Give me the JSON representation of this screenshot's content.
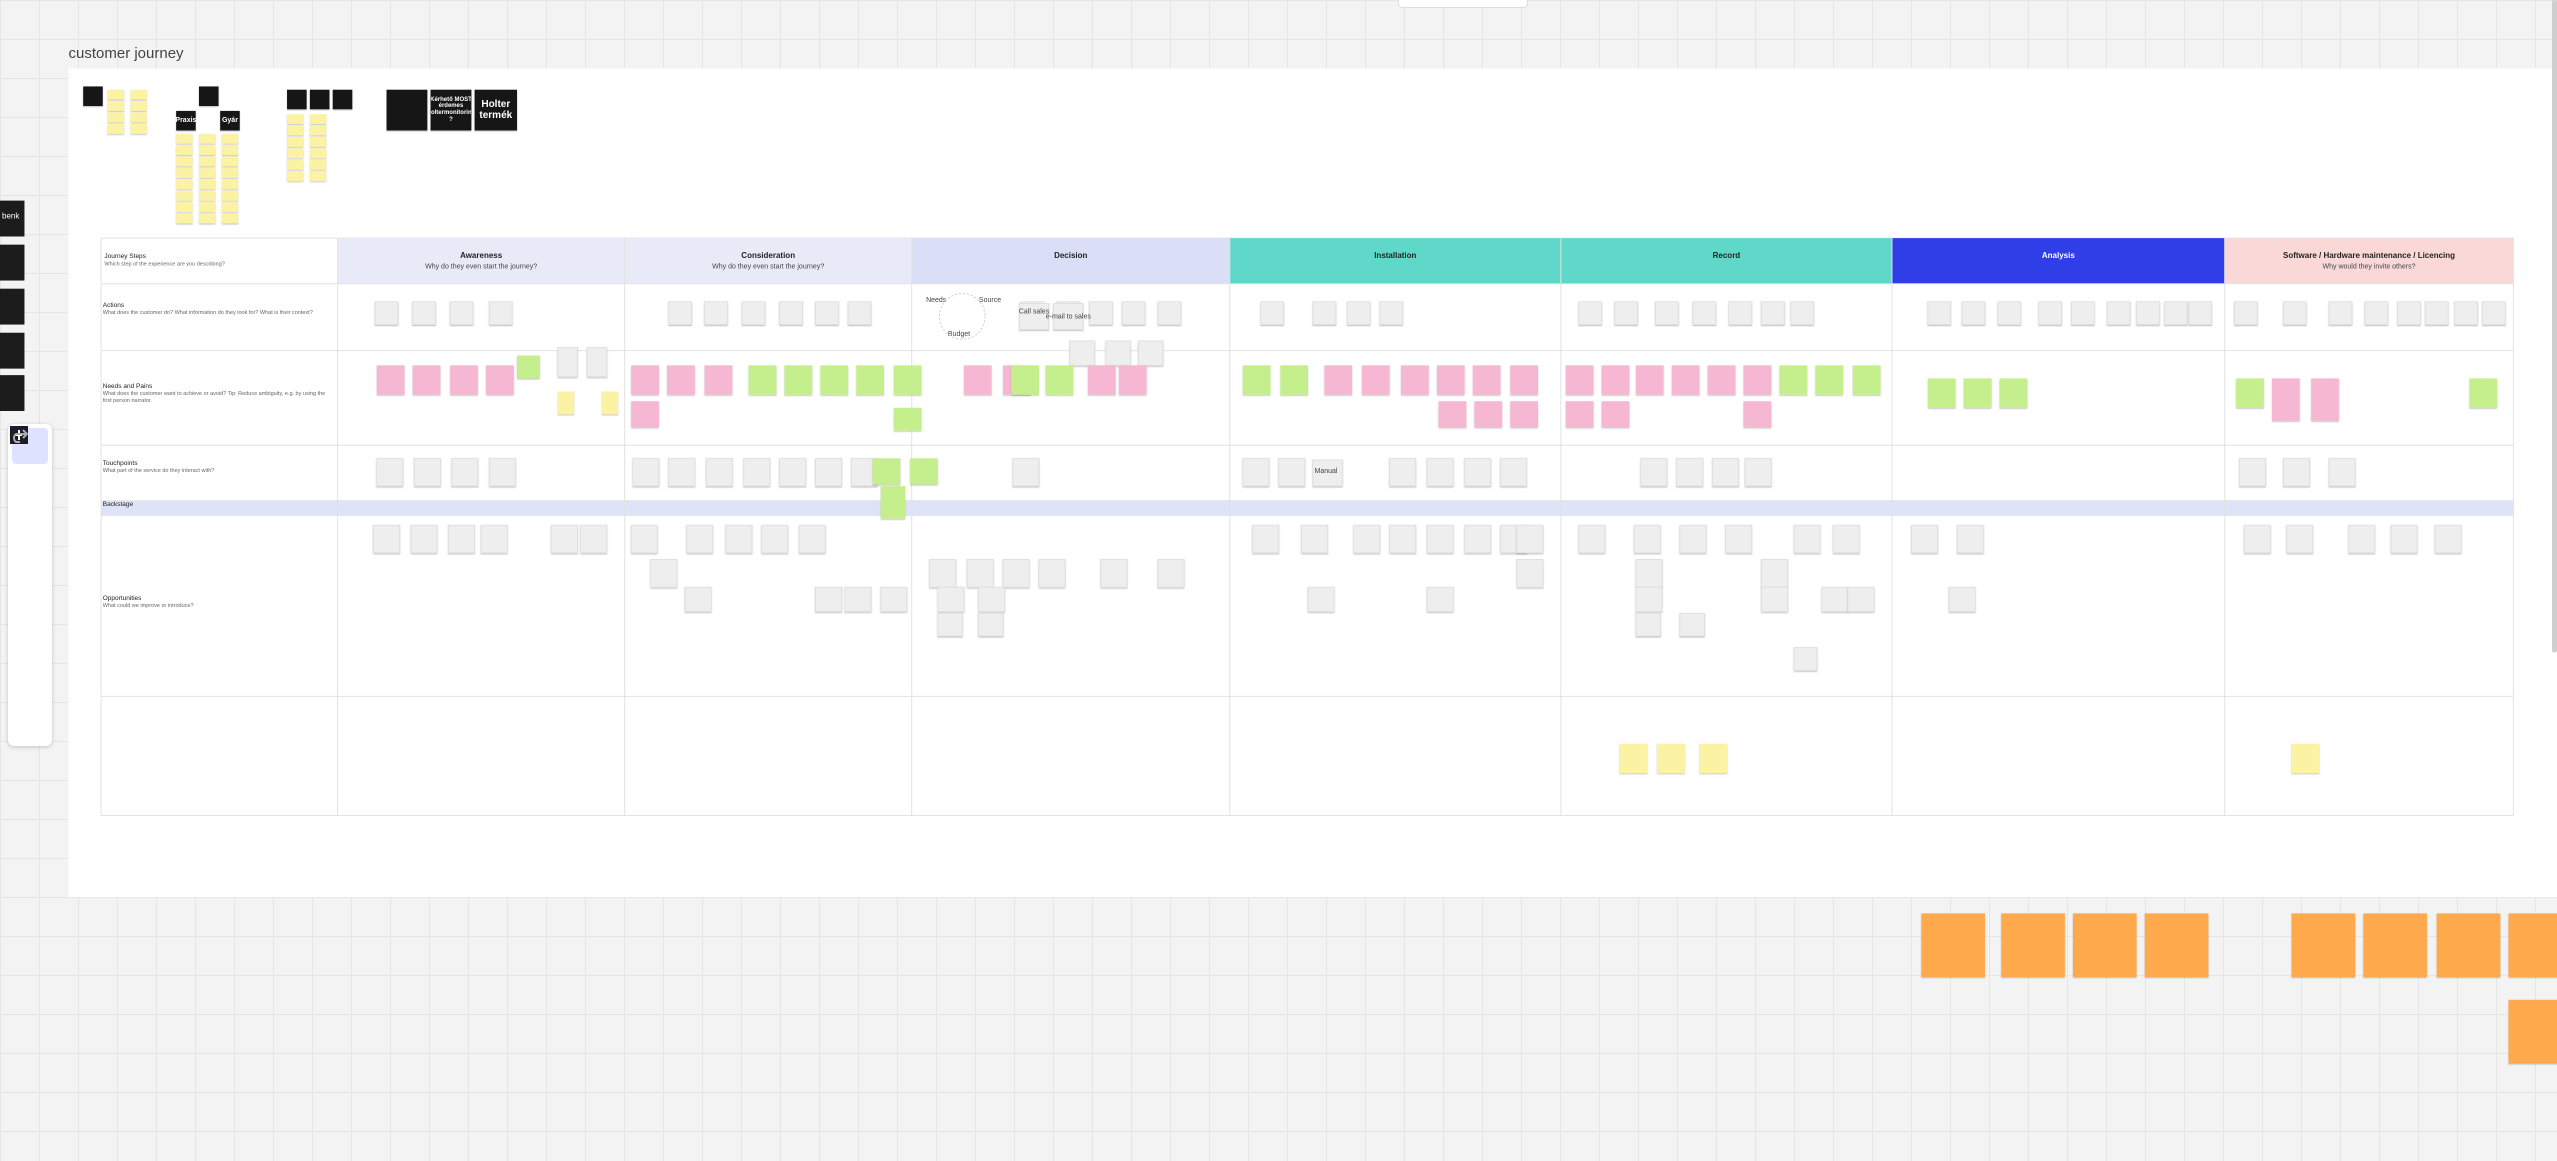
{
  "board": {
    "title": "customer journey",
    "journey_map": {
      "corner": {
        "title": "Journey Steps",
        "subtitle": "Which step of the experience are you describing?"
      },
      "columns": [
        {
          "title": "Awareness",
          "subtitle": "Why do they even start the journey?"
        },
        {
          "title": "Consideration",
          "subtitle": "Why do they even start the journey?"
        },
        {
          "title": "Decision"
        },
        {
          "title": "Installation"
        },
        {
          "title": "Record"
        },
        {
          "title": "Analysis"
        },
        {
          "title": "Software / Hardware maintenance / Licencing",
          "subtitle": "Why would they invite others?"
        }
      ],
      "rows": [
        {
          "title": "Actions",
          "subtitle": "What does the customer do? What information do they look for? What is their context?"
        },
        {
          "title": "Needs and Pains",
          "subtitle": "What does the customer want to achieve or avoid? Tip: Reduce ambiguity, e.g. by using the first person narrator."
        },
        {
          "title": "Touchpoints",
          "subtitle": "What part of the service do they interact with?"
        },
        {
          "title": "Backstage"
        },
        {
          "title": "Opportunities",
          "subtitle": "What could we improve or introduce?"
        }
      ]
    },
    "notes": [
      "Needs",
      "Source",
      "Budget",
      "Call sales",
      "e-mail to sales",
      "Manual"
    ],
    "cards": [
      "Praxis",
      "Gyár",
      "Kérhető MOST érdemes Holtermonitoring ?",
      "Holter termék",
      "benk"
    ]
  }
}
